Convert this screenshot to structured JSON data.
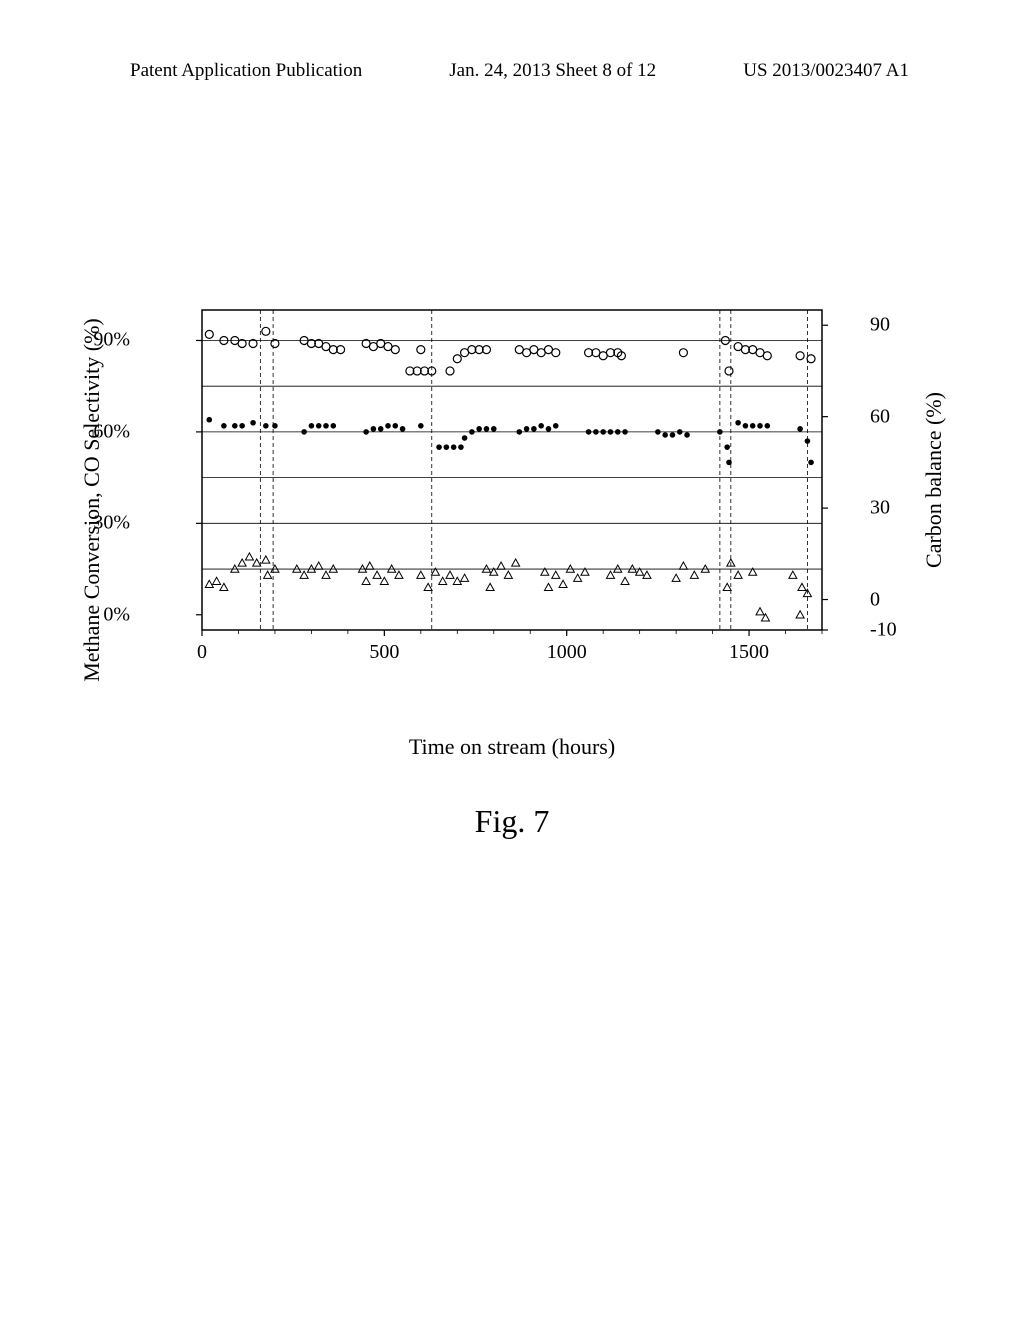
{
  "header": {
    "left": "Patent Application Publication",
    "center": "Jan. 24, 2013  Sheet 8 of 12",
    "right": "US 2013/0023407 A1"
  },
  "chart": {
    "type": "scatter",
    "y_left_label": "Methane Conversion, CO Selectivity (%)",
    "y_right_label": "Carbon balance (%)",
    "x_label": "Time on stream (hours)",
    "caption": "Fig. 7",
    "x_min": 0,
    "x_max": 1700,
    "y_left_min": -5,
    "y_left_max": 100,
    "y_right_min": -10,
    "y_right_max": 95,
    "x_ticks": [
      0,
      500,
      1000,
      1500
    ],
    "y_left_ticks": [
      {
        "v": 0,
        "label": "0%"
      },
      {
        "v": 30,
        "label": "30%"
      },
      {
        "v": 60,
        "label": "60%"
      },
      {
        "v": 90,
        "label": "90%"
      }
    ],
    "y_right_ticks": [
      {
        "v": -10,
        "label": "-10"
      },
      {
        "v": 0,
        "label": "0"
      },
      {
        "v": 30,
        "label": "30"
      },
      {
        "v": 60,
        "label": "60"
      },
      {
        "v": 90,
        "label": "90"
      }
    ],
    "gridlines_y_left": [
      15,
      30,
      45,
      60,
      75,
      90
    ],
    "vline_x": [
      160,
      195,
      590,
      630,
      1420,
      1450,
      1660
    ],
    "dashed_vlines": [
      160,
      195,
      630,
      1420,
      1450,
      1660
    ],
    "colors": {
      "axis": "#000000",
      "grid": "#000000",
      "bg": "#ffffff",
      "series_open_circle": "#000000",
      "series_dot": "#000000",
      "series_triangle": "#000000"
    },
    "marker_size": 4,
    "series": [
      {
        "name": "carbon-balance",
        "marker": "open-circle",
        "axis": "left",
        "points": [
          [
            20,
            92
          ],
          [
            60,
            90
          ],
          [
            90,
            90
          ],
          [
            110,
            89
          ],
          [
            140,
            89
          ],
          [
            175,
            93
          ],
          [
            200,
            89
          ],
          [
            280,
            90
          ],
          [
            300,
            89
          ],
          [
            320,
            89
          ],
          [
            340,
            88
          ],
          [
            360,
            87
          ],
          [
            380,
            87
          ],
          [
            450,
            89
          ],
          [
            470,
            88
          ],
          [
            490,
            89
          ],
          [
            510,
            88
          ],
          [
            530,
            87
          ],
          [
            600,
            87
          ],
          [
            570,
            80
          ],
          [
            590,
            80
          ],
          [
            610,
            80
          ],
          [
            630,
            80
          ],
          [
            680,
            80
          ],
          [
            700,
            84
          ],
          [
            720,
            86
          ],
          [
            740,
            87
          ],
          [
            760,
            87
          ],
          [
            780,
            87
          ],
          [
            870,
            87
          ],
          [
            890,
            86
          ],
          [
            910,
            87
          ],
          [
            930,
            86
          ],
          [
            950,
            87
          ],
          [
            970,
            86
          ],
          [
            1060,
            86
          ],
          [
            1080,
            86
          ],
          [
            1100,
            85
          ],
          [
            1120,
            86
          ],
          [
            1140,
            86
          ],
          [
            1150,
            85
          ],
          [
            1320,
            86
          ],
          [
            1435,
            90
          ],
          [
            1445,
            80
          ],
          [
            1470,
            88
          ],
          [
            1490,
            87
          ],
          [
            1510,
            87
          ],
          [
            1530,
            86
          ],
          [
            1550,
            85
          ],
          [
            1640,
            85
          ],
          [
            1670,
            84
          ]
        ]
      },
      {
        "name": "co-selectivity",
        "marker": "dot",
        "axis": "left",
        "points": [
          [
            20,
            64
          ],
          [
            60,
            62
          ],
          [
            90,
            62
          ],
          [
            110,
            62
          ],
          [
            140,
            63
          ],
          [
            175,
            62
          ],
          [
            200,
            62
          ],
          [
            280,
            60
          ],
          [
            300,
            62
          ],
          [
            320,
            62
          ],
          [
            340,
            62
          ],
          [
            360,
            62
          ],
          [
            450,
            60
          ],
          [
            470,
            61
          ],
          [
            490,
            61
          ],
          [
            510,
            62
          ],
          [
            530,
            62
          ],
          [
            550,
            61
          ],
          [
            600,
            62
          ],
          [
            650,
            55
          ],
          [
            670,
            55
          ],
          [
            690,
            55
          ],
          [
            710,
            55
          ],
          [
            720,
            58
          ],
          [
            740,
            60
          ],
          [
            760,
            61
          ],
          [
            780,
            61
          ],
          [
            800,
            61
          ],
          [
            870,
            60
          ],
          [
            890,
            61
          ],
          [
            910,
            61
          ],
          [
            930,
            62
          ],
          [
            950,
            61
          ],
          [
            970,
            62
          ],
          [
            1060,
            60
          ],
          [
            1080,
            60
          ],
          [
            1100,
            60
          ],
          [
            1120,
            60
          ],
          [
            1140,
            60
          ],
          [
            1160,
            60
          ],
          [
            1250,
            60
          ],
          [
            1270,
            59
          ],
          [
            1290,
            59
          ],
          [
            1310,
            60
          ],
          [
            1330,
            59
          ],
          [
            1420,
            60
          ],
          [
            1440,
            55
          ],
          [
            1445,
            50
          ],
          [
            1470,
            63
          ],
          [
            1490,
            62
          ],
          [
            1510,
            62
          ],
          [
            1530,
            62
          ],
          [
            1550,
            62
          ],
          [
            1640,
            61
          ],
          [
            1660,
            57
          ],
          [
            1670,
            50
          ]
        ]
      },
      {
        "name": "methane-conversion",
        "marker": "triangle",
        "axis": "right",
        "points": [
          [
            20,
            5
          ],
          [
            40,
            6
          ],
          [
            60,
            4
          ],
          [
            90,
            10
          ],
          [
            110,
            12
          ],
          [
            130,
            14
          ],
          [
            150,
            12
          ],
          [
            175,
            13
          ],
          [
            180,
            8
          ],
          [
            200,
            10
          ],
          [
            260,
            10
          ],
          [
            280,
            8
          ],
          [
            300,
            10
          ],
          [
            320,
            11
          ],
          [
            340,
            8
          ],
          [
            360,
            10
          ],
          [
            440,
            10
          ],
          [
            450,
            6
          ],
          [
            460,
            11
          ],
          [
            480,
            8
          ],
          [
            500,
            6
          ],
          [
            520,
            10
          ],
          [
            540,
            8
          ],
          [
            600,
            8
          ],
          [
            620,
            4
          ],
          [
            640,
            9
          ],
          [
            660,
            6
          ],
          [
            680,
            8
          ],
          [
            700,
            6
          ],
          [
            720,
            7
          ],
          [
            780,
            10
          ],
          [
            790,
            4
          ],
          [
            800,
            9
          ],
          [
            820,
            11
          ],
          [
            840,
            8
          ],
          [
            860,
            12
          ],
          [
            940,
            9
          ],
          [
            950,
            4
          ],
          [
            970,
            8
          ],
          [
            990,
            5
          ],
          [
            1010,
            10
          ],
          [
            1030,
            7
          ],
          [
            1050,
            9
          ],
          [
            1120,
            8
          ],
          [
            1140,
            10
          ],
          [
            1160,
            6
          ],
          [
            1180,
            10
          ],
          [
            1200,
            9
          ],
          [
            1220,
            8
          ],
          [
            1300,
            7
          ],
          [
            1320,
            11
          ],
          [
            1350,
            8
          ],
          [
            1380,
            10
          ],
          [
            1440,
            4
          ],
          [
            1450,
            12
          ],
          [
            1470,
            8
          ],
          [
            1510,
            9
          ],
          [
            1530,
            -4
          ],
          [
            1545,
            -6
          ],
          [
            1620,
            8
          ],
          [
            1640,
            -5
          ],
          [
            1660,
            2
          ],
          [
            1645,
            4
          ]
        ]
      }
    ]
  }
}
